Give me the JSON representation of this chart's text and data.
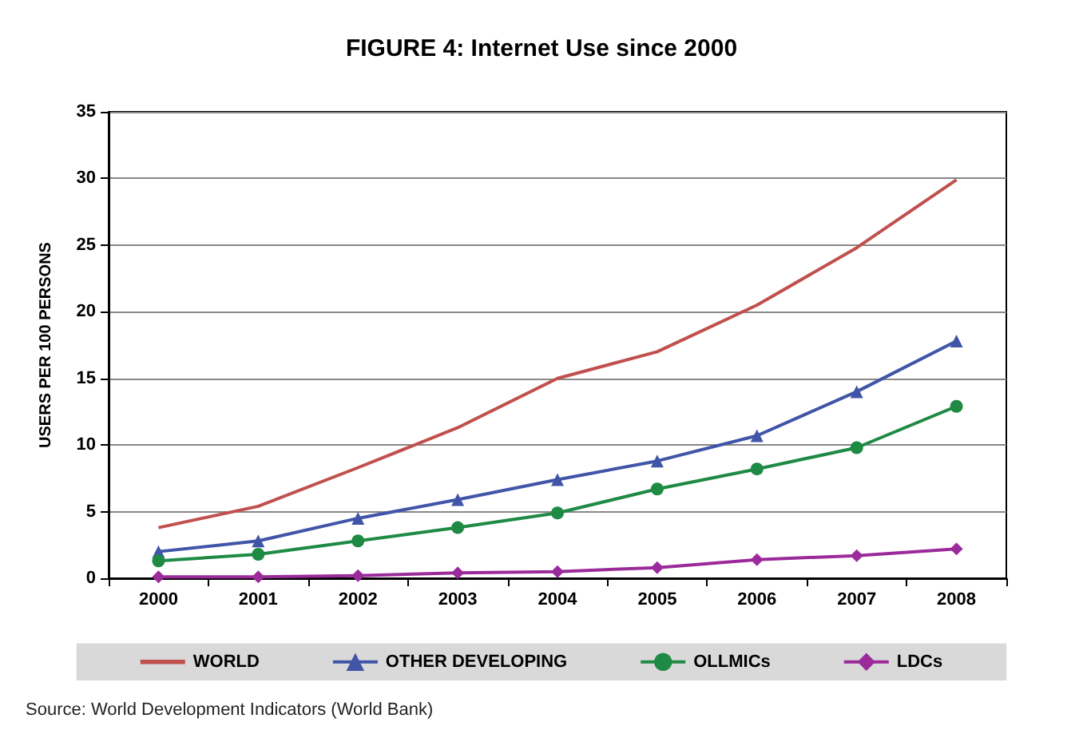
{
  "chart_data": {
    "type": "line",
    "title": "FIGURE 4: Internet Use since 2000",
    "ylabel": "USERS PER 100 PERSONS",
    "categories": [
      "2000",
      "2001",
      "2002",
      "2003",
      "2004",
      "2005",
      "2006",
      "2007",
      "2008"
    ],
    "series": [
      {
        "name": "WORLD",
        "color": "#c0504d",
        "marker": "none",
        "values": [
          3.8,
          5.4,
          8.3,
          11.3,
          15.0,
          17.0,
          20.5,
          24.8,
          29.9
        ]
      },
      {
        "name": "OTHER DEVELOPING",
        "color": "#4055a8",
        "marker": "triangle",
        "values": [
          2.0,
          2.8,
          4.5,
          5.9,
          7.4,
          8.8,
          10.7,
          14.0,
          17.8
        ]
      },
      {
        "name": "OLLMICs",
        "color": "#1e8a44",
        "marker": "circle",
        "values": [
          1.3,
          1.8,
          2.8,
          3.8,
          4.9,
          6.7,
          8.2,
          9.8,
          12.9
        ]
      },
      {
        "name": "LDCs",
        "color": "#9b2a9b",
        "marker": "diamond",
        "values": [
          0.1,
          0.1,
          0.2,
          0.4,
          0.5,
          0.8,
          1.4,
          1.7,
          2.2
        ]
      }
    ],
    "ylim": [
      0,
      35
    ],
    "yticks": [
      0,
      5,
      10,
      15,
      20,
      25,
      30,
      35
    ],
    "grid": "y",
    "legend": "bottom",
    "line_style": "solid",
    "annotations": [
      "Source: World Development Indicators (World Bank)"
    ]
  }
}
